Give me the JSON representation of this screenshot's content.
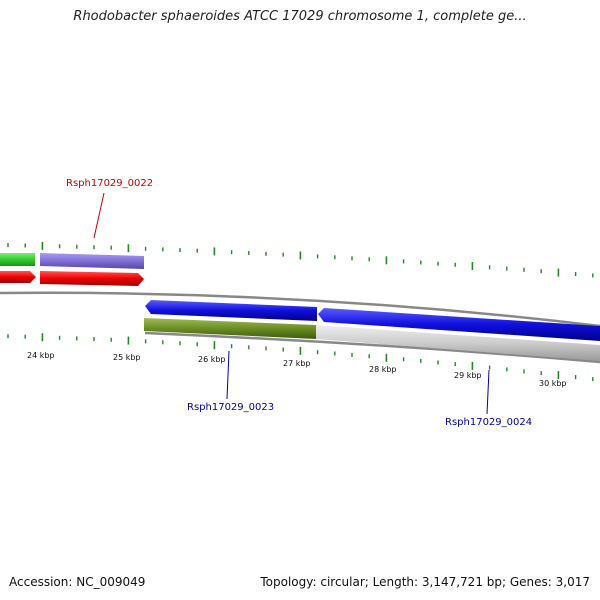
{
  "title": "Rhodobacter sphaeroides ATCC 17029 chromosome 1, complete ge...",
  "footer": {
    "accession": "Accession: NC_009049",
    "summary": "Topology: circular; Length: 3,147,721 bp; Genes: 3,017"
  },
  "scale_labels": [
    "24 kbp",
    "25 kbp",
    "26 kbp",
    "27 kbp",
    "28 kbp",
    "29 kbp",
    "30 kbp"
  ],
  "gene_labels": [
    {
      "id": "0022",
      "text": "Rsph17029_0022",
      "color": "#cc0000"
    },
    {
      "id": "0023",
      "text": "Rsph17029_0023",
      "color": "#0000aa"
    },
    {
      "id": "0024",
      "text": "Rsph17029_0024",
      "color": "#0000aa"
    }
  ],
  "colors": {
    "tick": "#228b22",
    "gene_green": "#33cc33",
    "gene_purple": "#7f6fd6",
    "gene_red": "#ee0000",
    "gene_blue": "#1010dd",
    "gene_olive": "#6b8e23",
    "gene_grey": "#cccccc",
    "backbone": "#888888"
  }
}
